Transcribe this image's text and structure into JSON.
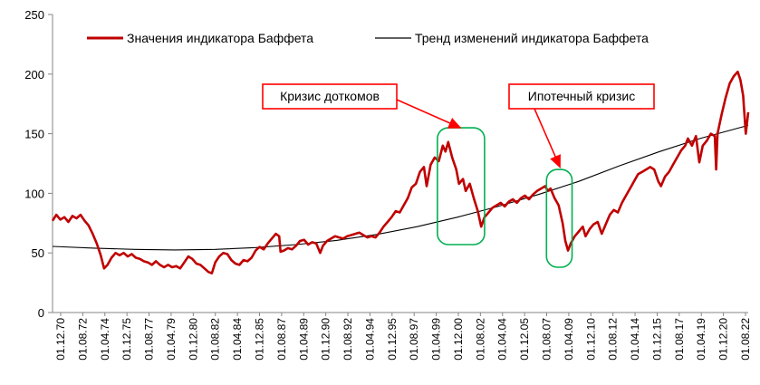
{
  "chart_data": {
    "type": "line",
    "title": "",
    "xlabel": "",
    "ylabel": "",
    "ylim": [
      0,
      250
    ],
    "yticks": [
      0,
      50,
      100,
      150,
      200,
      250
    ],
    "grid": false,
    "legend_placement": "top",
    "x_tick_labels": [
      "01.12.70",
      "01.08.72",
      "01.04.74",
      "01.12.75",
      "01.08.77",
      "01.04.79",
      "01.12.80",
      "01.08.82",
      "01.04.84",
      "01.12.85",
      "01.08.87",
      "01.04.89",
      "01.12.90",
      "01.08.92",
      "01.04.94",
      "01.12.95",
      "01.08.97",
      "01.04.99",
      "01.12.00",
      "01.08.02",
      "01.04.04",
      "01.12.05",
      "01.08.07",
      "01.04.09",
      "01.12.10",
      "01.08.12",
      "01.04.14",
      "01.12.15",
      "01.08.17",
      "01.04.19",
      "01.12.20",
      "01.08.22"
    ],
    "x_range": [
      1970.92,
      2022.58
    ],
    "series": [
      {
        "name": "Значения индикатора Баффета",
        "color": "#c00000",
        "points": [
          [
            1970.92,
            77
          ],
          [
            1971.2,
            82
          ],
          [
            1971.5,
            78
          ],
          [
            1971.8,
            80
          ],
          [
            1972.1,
            76
          ],
          [
            1972.4,
            81
          ],
          [
            1972.7,
            79
          ],
          [
            1973.0,
            82
          ],
          [
            1973.3,
            77
          ],
          [
            1973.6,
            73
          ],
          [
            1973.9,
            66
          ],
          [
            1974.2,
            58
          ],
          [
            1974.5,
            48
          ],
          [
            1974.75,
            37
          ],
          [
            1975.0,
            40
          ],
          [
            1975.3,
            46
          ],
          [
            1975.6,
            50
          ],
          [
            1975.9,
            48
          ],
          [
            1976.2,
            50
          ],
          [
            1976.5,
            47
          ],
          [
            1976.8,
            49
          ],
          [
            1977.1,
            46
          ],
          [
            1977.4,
            45
          ],
          [
            1977.7,
            43
          ],
          [
            1978.0,
            42
          ],
          [
            1978.3,
            40
          ],
          [
            1978.6,
            43
          ],
          [
            1978.9,
            40
          ],
          [
            1979.2,
            38
          ],
          [
            1979.5,
            40
          ],
          [
            1979.8,
            38
          ],
          [
            1980.1,
            39
          ],
          [
            1980.4,
            37
          ],
          [
            1980.7,
            42
          ],
          [
            1981.0,
            47
          ],
          [
            1981.3,
            45
          ],
          [
            1981.6,
            41
          ],
          [
            1981.9,
            40
          ],
          [
            1982.2,
            37
          ],
          [
            1982.5,
            34
          ],
          [
            1982.75,
            33
          ],
          [
            1983.0,
            42
          ],
          [
            1983.3,
            47
          ],
          [
            1983.6,
            50
          ],
          [
            1983.9,
            49
          ],
          [
            1984.2,
            44
          ],
          [
            1984.5,
            41
          ],
          [
            1984.8,
            40
          ],
          [
            1985.1,
            44
          ],
          [
            1985.4,
            43
          ],
          [
            1985.7,
            46
          ],
          [
            1986.0,
            52
          ],
          [
            1986.3,
            55
          ],
          [
            1986.6,
            53
          ],
          [
            1986.9,
            58
          ],
          [
            1987.2,
            62
          ],
          [
            1987.5,
            66
          ],
          [
            1987.75,
            64
          ],
          [
            1987.85,
            51
          ],
          [
            1988.1,
            52
          ],
          [
            1988.4,
            54
          ],
          [
            1988.7,
            53
          ],
          [
            1989.0,
            56
          ],
          [
            1989.3,
            60
          ],
          [
            1989.6,
            61
          ],
          [
            1989.9,
            57
          ],
          [
            1990.2,
            59
          ],
          [
            1990.5,
            58
          ],
          [
            1990.8,
            50
          ],
          [
            1991.0,
            56
          ],
          [
            1991.3,
            60
          ],
          [
            1991.6,
            62
          ],
          [
            1991.9,
            64
          ],
          [
            1992.2,
            63
          ],
          [
            1992.5,
            62
          ],
          [
            1992.8,
            64
          ],
          [
            1993.1,
            65
          ],
          [
            1993.4,
            66
          ],
          [
            1993.7,
            67
          ],
          [
            1994.0,
            65
          ],
          [
            1994.3,
            63
          ],
          [
            1994.6,
            64
          ],
          [
            1994.9,
            63
          ],
          [
            1995.2,
            67
          ],
          [
            1995.5,
            72
          ],
          [
            1995.8,
            76
          ],
          [
            1996.1,
            80
          ],
          [
            1996.4,
            85
          ],
          [
            1996.7,
            84
          ],
          [
            1997.0,
            90
          ],
          [
            1997.3,
            96
          ],
          [
            1997.6,
            105
          ],
          [
            1997.9,
            108
          ],
          [
            1998.2,
            118
          ],
          [
            1998.5,
            122
          ],
          [
            1998.7,
            106
          ],
          [
            1999.0,
            124
          ],
          [
            1999.3,
            130
          ],
          [
            1999.6,
            127
          ],
          [
            1999.9,
            140
          ],
          [
            2000.1,
            135
          ],
          [
            2000.3,
            143
          ],
          [
            2000.6,
            130
          ],
          [
            2000.9,
            120
          ],
          [
            2001.1,
            108
          ],
          [
            2001.4,
            112
          ],
          [
            2001.6,
            102
          ],
          [
            2001.9,
            108
          ],
          [
            2002.2,
            96
          ],
          [
            2002.5,
            85
          ],
          [
            2002.75,
            72
          ],
          [
            2003.0,
            80
          ],
          [
            2003.3,
            84
          ],
          [
            2003.6,
            88
          ],
          [
            2003.9,
            90
          ],
          [
            2004.2,
            92
          ],
          [
            2004.5,
            89
          ],
          [
            2004.8,
            93
          ],
          [
            2005.1,
            95
          ],
          [
            2005.4,
            92
          ],
          [
            2005.7,
            96
          ],
          [
            2006.0,
            98
          ],
          [
            2006.3,
            95
          ],
          [
            2006.6,
            99
          ],
          [
            2006.9,
            102
          ],
          [
            2007.2,
            104
          ],
          [
            2007.5,
            106
          ],
          [
            2007.7,
            102
          ],
          [
            2007.9,
            104
          ],
          [
            2008.2,
            96
          ],
          [
            2008.5,
            90
          ],
          [
            2008.8,
            75
          ],
          [
            2009.0,
            60
          ],
          [
            2009.2,
            52
          ],
          [
            2009.4,
            58
          ],
          [
            2009.7,
            64
          ],
          [
            2010.0,
            68
          ],
          [
            2010.3,
            72
          ],
          [
            2010.5,
            64
          ],
          [
            2010.8,
            70
          ],
          [
            2011.1,
            74
          ],
          [
            2011.4,
            76
          ],
          [
            2011.7,
            66
          ],
          [
            2012.0,
            74
          ],
          [
            2012.3,
            82
          ],
          [
            2012.6,
            86
          ],
          [
            2012.9,
            84
          ],
          [
            2013.2,
            92
          ],
          [
            2013.5,
            98
          ],
          [
            2013.8,
            104
          ],
          [
            2014.1,
            110
          ],
          [
            2014.4,
            116
          ],
          [
            2014.7,
            118
          ],
          [
            2015.0,
            120
          ],
          [
            2015.3,
            122
          ],
          [
            2015.6,
            120
          ],
          [
            2015.9,
            110
          ],
          [
            2016.1,
            106
          ],
          [
            2016.4,
            114
          ],
          [
            2016.7,
            118
          ],
          [
            2017.0,
            124
          ],
          [
            2017.3,
            130
          ],
          [
            2017.6,
            136
          ],
          [
            2017.9,
            140
          ],
          [
            2018.1,
            146
          ],
          [
            2018.4,
            140
          ],
          [
            2018.7,
            148
          ],
          [
            2018.95,
            126
          ],
          [
            2019.2,
            140
          ],
          [
            2019.5,
            144
          ],
          [
            2019.8,
            150
          ],
          [
            2020.1,
            148
          ],
          [
            2020.2,
            120
          ],
          [
            2020.3,
            150
          ],
          [
            2020.6,
            166
          ],
          [
            2020.9,
            180
          ],
          [
            2021.2,
            192
          ],
          [
            2021.5,
            198
          ],
          [
            2021.8,
            202
          ],
          [
            2022.0,
            195
          ],
          [
            2022.2,
            182
          ],
          [
            2022.4,
            150
          ],
          [
            2022.58,
            168
          ]
        ]
      },
      {
        "name": "Тренд изменений индикатора Баффета",
        "color": "#000000",
        "points": [
          [
            1970.92,
            55.5
          ],
          [
            1974,
            54
          ],
          [
            1977,
            53
          ],
          [
            1980,
            52.5
          ],
          [
            1983,
            53
          ],
          [
            1986,
            54.5
          ],
          [
            1989,
            57
          ],
          [
            1992,
            60.5
          ],
          [
            1995,
            65.5
          ],
          [
            1998,
            72
          ],
          [
            2001,
            80
          ],
          [
            2004,
            89
          ],
          [
            2007,
            99
          ],
          [
            2010,
            110
          ],
          [
            2013,
            123
          ],
          [
            2016,
            135
          ],
          [
            2019,
            146
          ],
          [
            2022.58,
            157
          ]
        ]
      }
    ],
    "annotations": [
      {
        "text": "Кризис доткомов",
        "target_x": 2001.2,
        "target_y": 155
      },
      {
        "text": "Ипотечный кризис",
        "target_x": 2008.6,
        "target_y": 122
      }
    ],
    "highlight_ranges": [
      {
        "x0": 1999.5,
        "x1": 2003.0,
        "y0": 57,
        "y1": 155
      },
      {
        "x0": 2007.6,
        "x1": 2009.5,
        "y0": 38,
        "y1": 120
      }
    ]
  }
}
